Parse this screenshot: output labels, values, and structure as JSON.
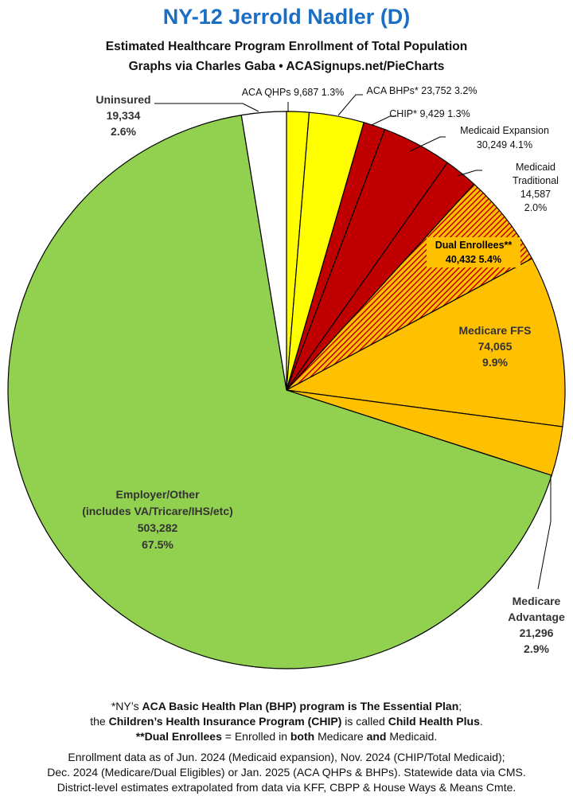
{
  "header": {
    "title": "NY-12 Jerrold Nadler (D)",
    "subtitle1": "Estimated Healthcare Program Enrollment of Total Population",
    "subtitle2": "Graphs via Charles Gaba  •  ACASignups.net/PieCharts"
  },
  "chart_data": {
    "type": "pie",
    "start": "12 o'clock",
    "direction": "clockwise",
    "slices": [
      {
        "label": "ACA QHPs",
        "value": 9687,
        "pct": "1.3%",
        "color": "#ffff00",
        "pattern": "solid",
        "label_lines": [
          "ACA QHPs 9,687 1.3%"
        ]
      },
      {
        "label": "ACA BHPs*",
        "value": 23752,
        "pct": "3.2%",
        "color": "#ffff00",
        "pattern": "solid",
        "label_lines": [
          "ACA BHPs* 23,752 3.2%"
        ]
      },
      {
        "label": "CHIP*",
        "value": 9429,
        "pct": "1.3%",
        "color": "#c00000",
        "pattern": "solid",
        "label_lines": [
          "CHIP* 9,429 1.3%"
        ]
      },
      {
        "label": "Medicaid Expansion",
        "value": 30249,
        "pct": "4.1%",
        "color": "#c00000",
        "pattern": "solid",
        "label_lines": [
          "Medicaid Expansion",
          "30,249 4.1%"
        ]
      },
      {
        "label": "Medicaid Traditional",
        "value": 14587,
        "pct": "2.0%",
        "color": "#c00000",
        "pattern": "solid",
        "label_lines": [
          "Medicaid",
          "Traditional",
          "14,587",
          "2.0%"
        ]
      },
      {
        "label": "Dual Enrollees**",
        "value": 40432,
        "pct": "5.4%",
        "color": "#c00000",
        "pattern": "hatched",
        "label_lines": [
          "Dual Enrollees**",
          "40,432 5.4%"
        ]
      },
      {
        "label": "Medicare FFS",
        "value": 74065,
        "pct": "9.9%",
        "color": "#ffc000",
        "pattern": "solid",
        "label_lines": [
          "Medicare FFS",
          "74,065",
          "9.9%"
        ]
      },
      {
        "label": "Medicare Advantage",
        "value": 21296,
        "pct": "2.9%",
        "color": "#ffc000",
        "pattern": "solid",
        "label_lines": [
          "Medicare",
          "Advantage",
          "21,296",
          "2.9%"
        ]
      },
      {
        "label": "Employer/Other",
        "value": 503282,
        "pct": "67.5%",
        "color": "#92d050",
        "pattern": "solid",
        "label_lines": [
          "Employer/Other",
          "(includes VA/Tricare/IHS/etc)",
          "503,282",
          "67.5%"
        ]
      },
      {
        "label": "Uninsured",
        "value": 19334,
        "pct": "2.6%",
        "color": "#ffffff",
        "pattern": "solid",
        "label_lines": [
          "Uninsured",
          "19,334",
          "2.6%"
        ]
      }
    ]
  },
  "footnotes": {
    "line1_a": "*NY’s ",
    "line1_b": "ACA Basic Health Plan (BHP) program is The Essential Plan",
    "line1_c": ";",
    "line2_a": "the ",
    "line2_b": "Children’s Health Insurance Program (CHIP)",
    "line2_c": " is called ",
    "line2_d": "Child Health Plus",
    "line2_e": ".",
    "line3_a": "**Dual Enrollees",
    "line3_b": " = Enrolled in ",
    "line3_c": "both",
    "line3_d": " Medicare ",
    "line3_e": "and",
    "line3_f": " Medicaid.",
    "src1": "Enrollment data as of Jun. 2024 (Medicaid expansion), Nov. 2024 (CHIP/Total Medicaid);",
    "src2": "Dec. 2024 (Medicare/Dual Eligibles) or Jan. 2025 (ACA QHPs & BHPs). Statewide data via CMS.",
    "src3": "District-level estimates extrapolated from data via KFF, CBPP & House Ways & Means Cmte."
  }
}
